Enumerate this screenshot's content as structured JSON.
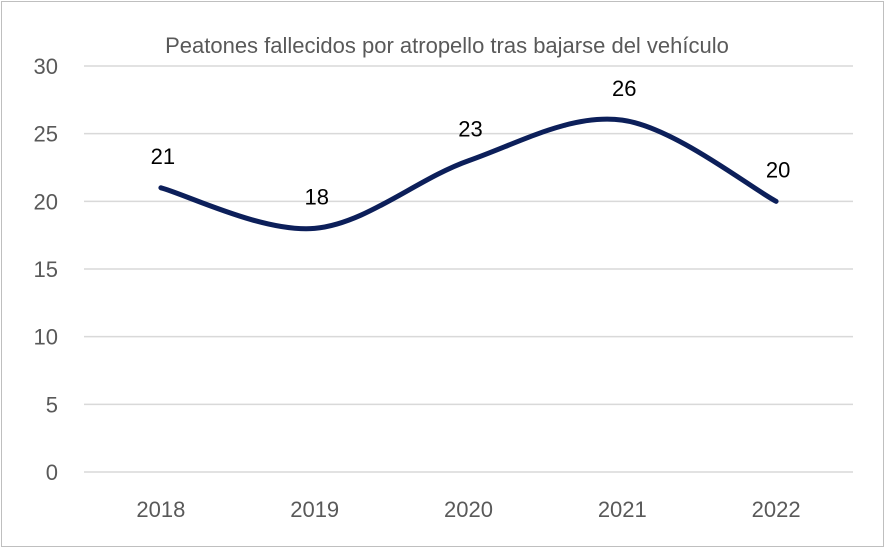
{
  "chart_data": {
    "type": "line",
    "title": "Peatones fallecidos por atropello tras bajarse del vehículo",
    "xlabel": "",
    "ylabel": "",
    "categories": [
      "2018",
      "2019",
      "2020",
      "2021",
      "2022"
    ],
    "series": [
      {
        "name": "Peatones fallecidos",
        "values": [
          21,
          18,
          23,
          26,
          20
        ]
      }
    ],
    "data_labels": [
      "21",
      "18",
      "23",
      "26",
      "20"
    ],
    "ylim": [
      0,
      30
    ],
    "yticks": [
      "0",
      "5",
      "10",
      "15",
      "20",
      "25",
      "30"
    ],
    "grid": true,
    "smooth": true,
    "legend": "none",
    "colors": {
      "line": "#0c1f5a",
      "grid": "#d9d9d9",
      "tick_text": "#595959",
      "title_text": "#595959",
      "label_text": "#000000"
    }
  }
}
